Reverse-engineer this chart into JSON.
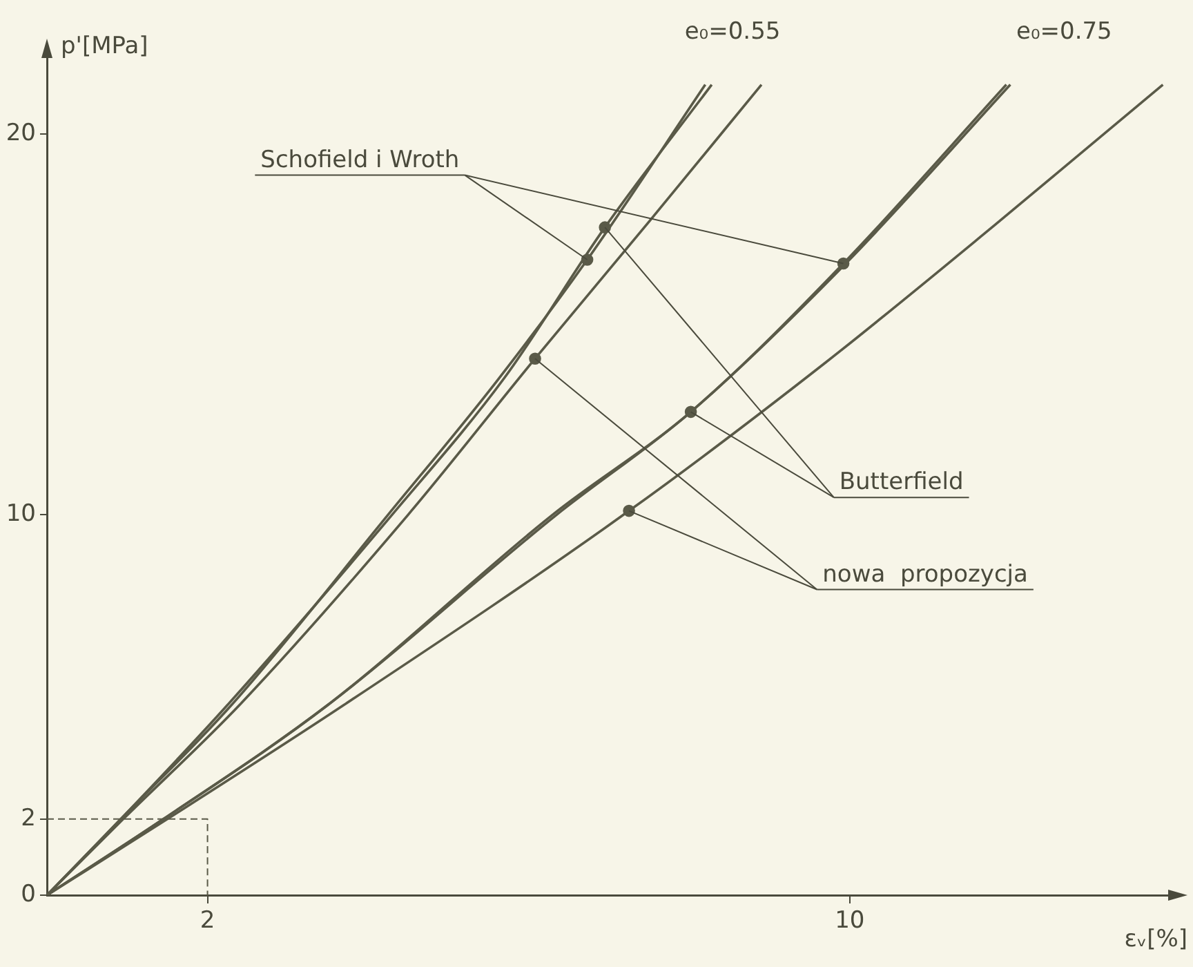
{
  "chart_data": {
    "type": "line",
    "xlabel": "εᵥ[%]",
    "ylabel": "p'[MPa]",
    "xlim": [
      0,
      14
    ],
    "ylim": [
      0,
      22
    ],
    "xticks": [
      2,
      10
    ],
    "yticks": [
      0,
      2,
      10,
      20
    ],
    "grid": false,
    "legend": false,
    "annotations": [
      "e₀=0.55",
      "e₀=0.75"
    ],
    "series": [
      {
        "type": "line",
        "color": "#5a5a48",
        "marker": "none",
        "x": [
          0,
          0.92,
          2.3,
          4.25,
          5.6,
          6.73,
          8.2
        ],
        "values": [
          0,
          2,
          5,
          10,
          13.5,
          16.7,
          21.3
        ]
      },
      {
        "type": "line",
        "color": "#5a5a48",
        "marker": "none",
        "x": [
          0,
          0.92,
          2.25,
          4.3,
          5.7,
          6.95,
          8.28
        ],
        "values": [
          0,
          2,
          5,
          10,
          13.6,
          17.55,
          21.3
        ]
      },
      {
        "type": "line",
        "color": "#5a5a48",
        "marker": "none",
        "x": [
          0,
          0.95,
          2.4,
          4.5,
          6.08,
          7.5,
          8.9
        ],
        "values": [
          0,
          2,
          5,
          10,
          14.1,
          17.7,
          21.3
        ]
      },
      {
        "type": "line",
        "color": "#5a5a48",
        "marker": "none",
        "x": [
          0,
          1.45,
          3.5,
          6.3,
          8.02,
          9.92,
          11.95
        ],
        "values": [
          0,
          2,
          5,
          10,
          12.7,
          16.6,
          21.3
        ]
      },
      {
        "type": "line",
        "color": "#5a5a48",
        "marker": "none",
        "x": [
          0,
          1.45,
          3.5,
          6.35,
          8.02,
          9.95,
          12.0
        ],
        "values": [
          0,
          2,
          5,
          10,
          12.7,
          16.6,
          21.3
        ]
      },
      {
        "type": "line",
        "color": "#5a5a48",
        "marker": "none",
        "x": [
          0,
          1.5,
          3.7,
          7.25,
          9.7,
          11.8,
          13.9
        ],
        "values": [
          0,
          2,
          5,
          10.1,
          14,
          17.6,
          21.3
        ]
      },
      {
        "type": "line",
        "color": "#5a5a48",
        "marker": "none",
        "line_style": "dashed",
        "x": [
          0,
          2,
          2
        ],
        "values": [
          2,
          2,
          0
        ]
      },
      {
        "type": "scatter",
        "name": "Schofield i Wroth",
        "color": "#5a5a48",
        "marker": "circle",
        "x": [
          6.73,
          9.92
        ],
        "values": [
          16.7,
          16.6
        ]
      },
      {
        "type": "scatter",
        "name": "Butterfield",
        "color": "#5a5a48",
        "marker": "circle",
        "x": [
          6.95,
          8.02
        ],
        "values": [
          17.55,
          12.7
        ]
      },
      {
        "type": "scatter",
        "name": "nowa  propozycja",
        "color": "#5a5a48",
        "marker": "circle",
        "x": [
          6.08,
          7.25
        ],
        "values": [
          14.1,
          10.1
        ]
      }
    ]
  }
}
